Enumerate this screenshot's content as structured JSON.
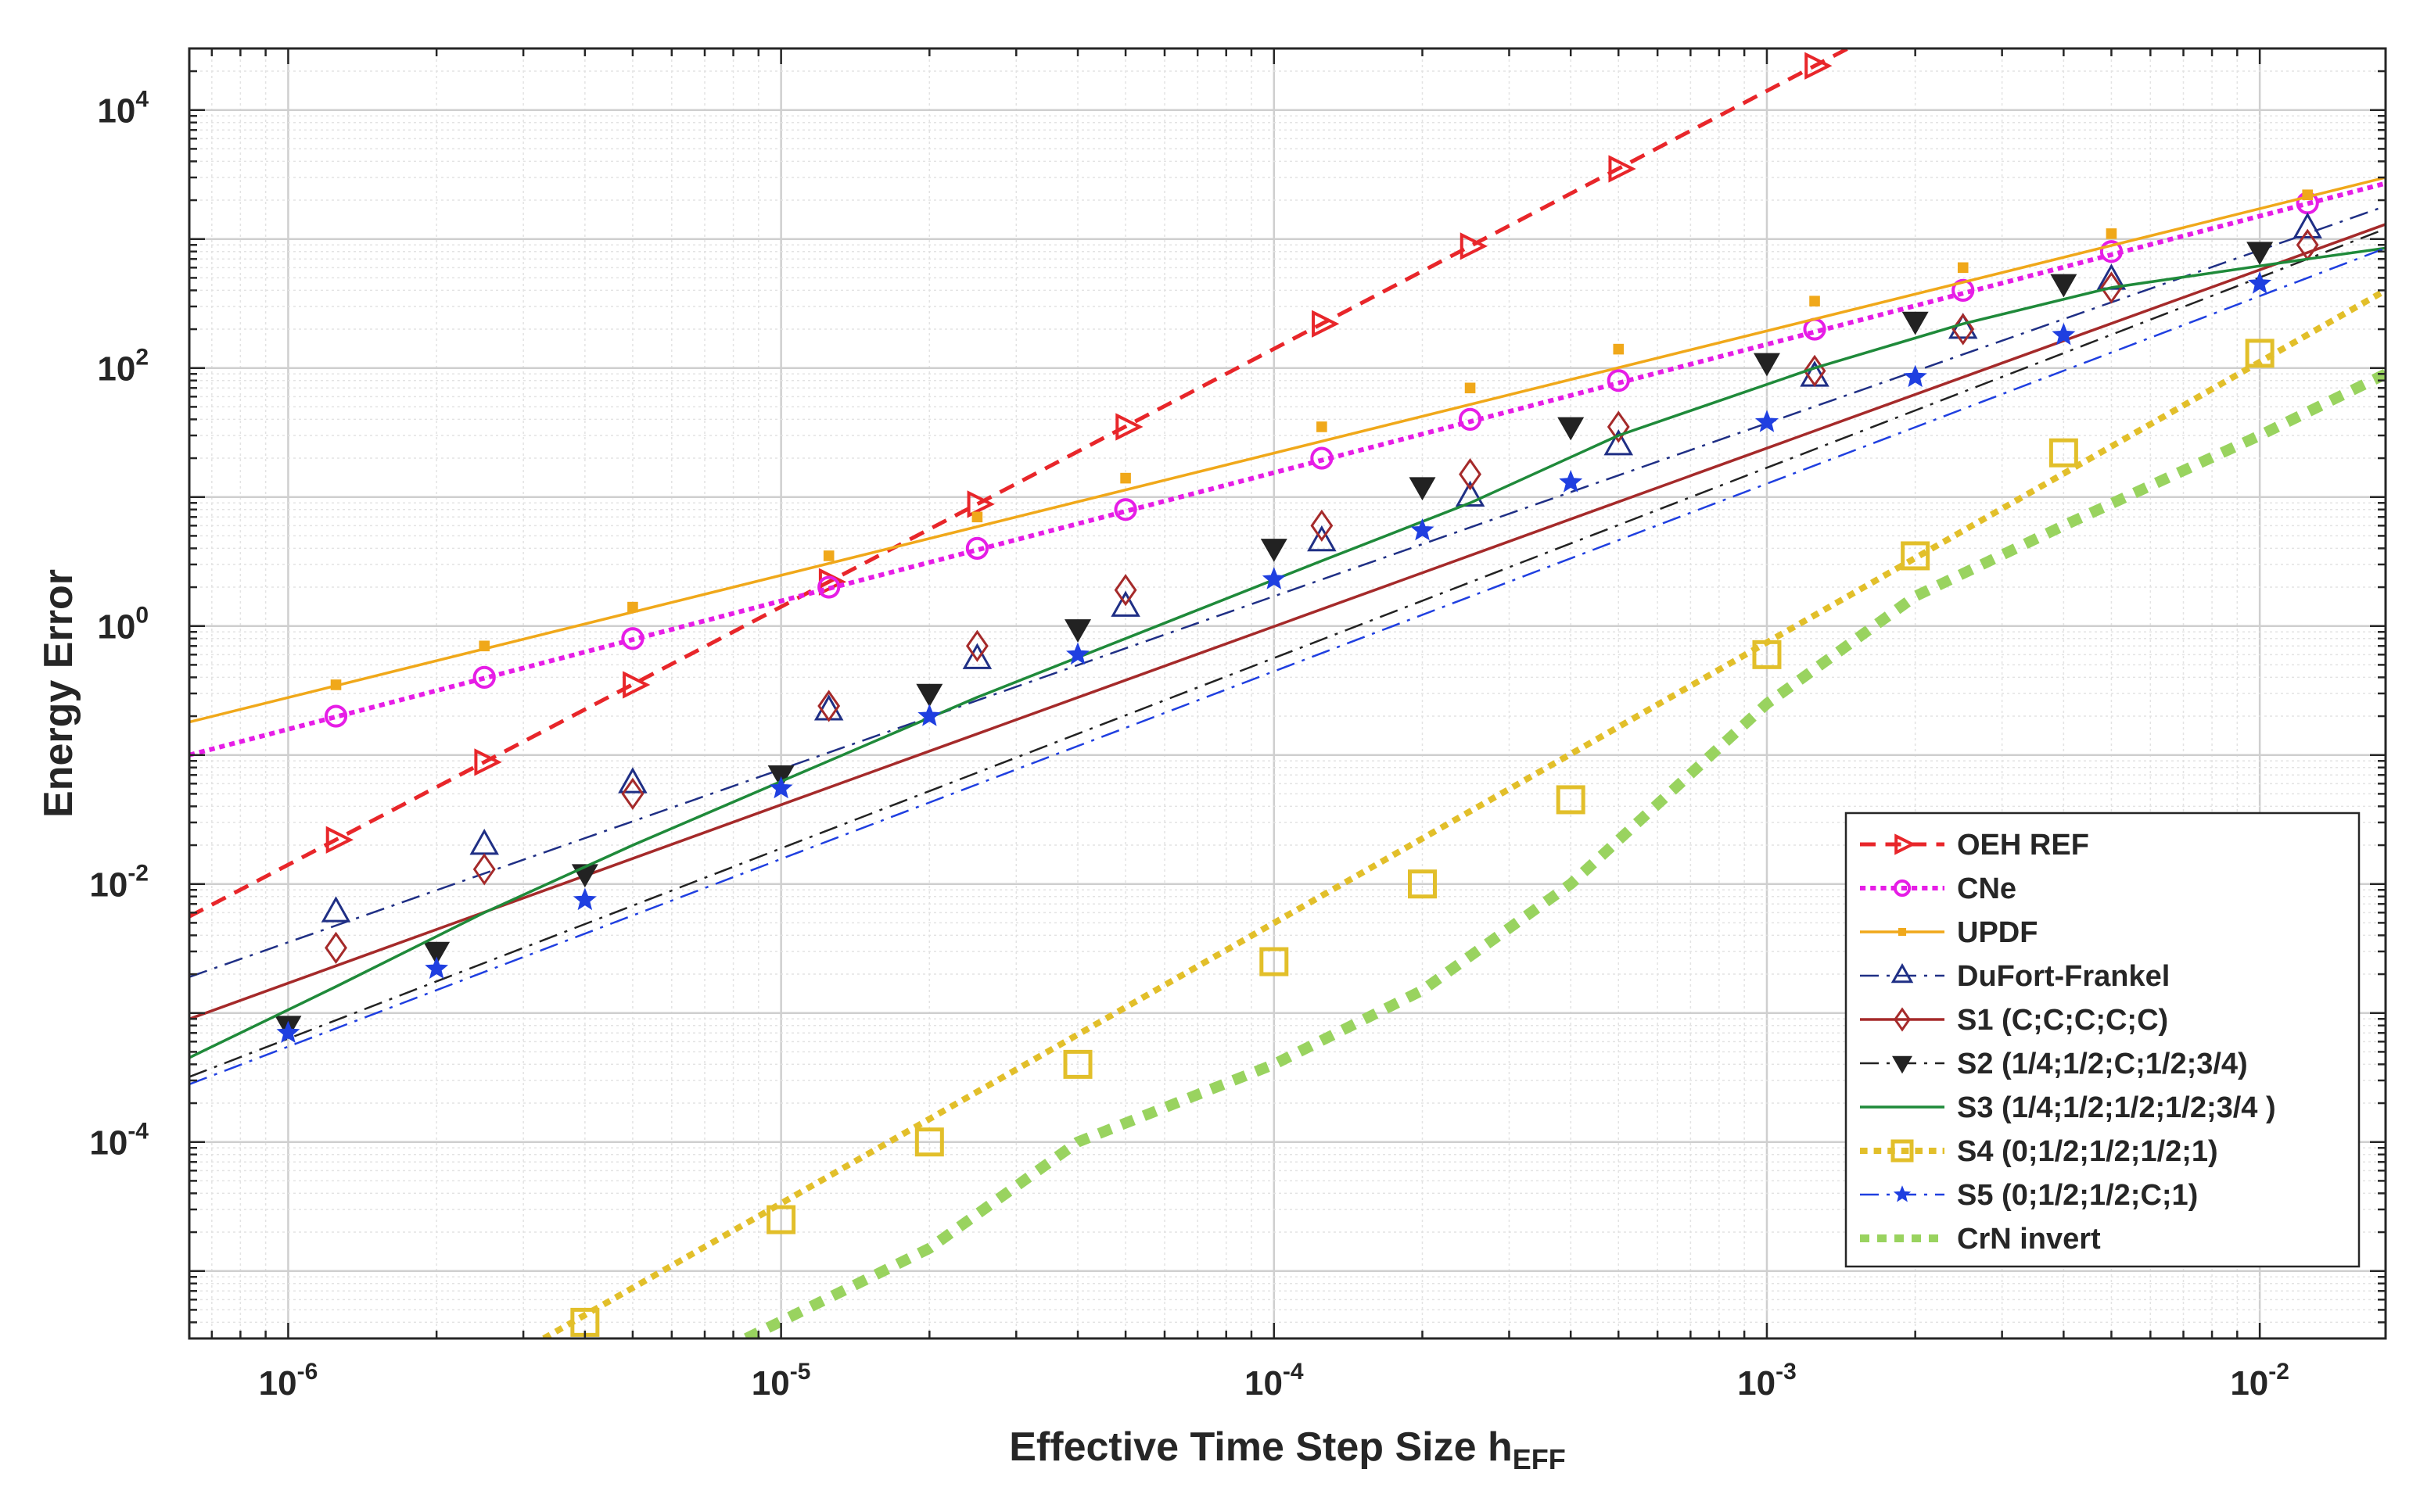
{
  "chart_data": {
    "type": "line",
    "scale": {
      "x": "log",
      "y": "log"
    },
    "xlabel_main": "Effective Time Step Size h",
    "xlabel_sub": "EFF",
    "ylabel": "Energy Error",
    "xlim": [
      6.3e-07,
      0.018
    ],
    "ylim": [
      3e-06,
      30000
    ],
    "x_ticks": [
      {
        "value": 1e-06,
        "base": "10",
        "exp": "-6"
      },
      {
        "value": 1e-05,
        "base": "10",
        "exp": "-5"
      },
      {
        "value": 0.0001,
        "base": "10",
        "exp": "-4"
      },
      {
        "value": 0.001,
        "base": "10",
        "exp": "-3"
      },
      {
        "value": 0.01,
        "base": "10",
        "exp": "-2"
      }
    ],
    "y_ticks": [
      {
        "value": 0.0001,
        "base": "10",
        "exp": "-4"
      },
      {
        "value": 0.01,
        "base": "10",
        "exp": "-2"
      },
      {
        "value": 1,
        "base": "10",
        "exp": "0"
      },
      {
        "value": 100,
        "base": "10",
        "exp": "2"
      },
      {
        "value": 10000,
        "base": "10",
        "exp": "4"
      }
    ],
    "grid": true,
    "legend_position": "bottom-right",
    "series": [
      {
        "name": "OEH REF",
        "color": "#e8262a",
        "dash": "dashed",
        "width": 5,
        "marker": "triangle-right",
        "markers": [
          [
            1.25e-06,
            0.022
          ],
          [
            2.5e-06,
            0.088
          ],
          [
            5e-06,
            0.35
          ],
          [
            1.25e-05,
            2.2
          ],
          [
            2.5e-05,
            8.8
          ],
          [
            5e-05,
            35
          ],
          [
            0.000125,
            220
          ],
          [
            0.00025,
            880
          ],
          [
            0.0005,
            3500
          ],
          [
            0.00125,
            22000
          ]
        ],
        "line": [
          [
            6.3e-07,
            0.0056
          ],
          [
            0.0016,
            36000
          ]
        ]
      },
      {
        "name": "CNe",
        "color": "#e61de6",
        "dash": "dotted",
        "width": 6,
        "marker": "circle",
        "markers": [
          [
            1.25e-06,
            0.2
          ],
          [
            2.5e-06,
            0.4
          ],
          [
            5e-06,
            0.8
          ],
          [
            1.25e-05,
            2
          ],
          [
            2.5e-05,
            4
          ],
          [
            5e-05,
            8
          ],
          [
            0.000125,
            20
          ],
          [
            0.00025,
            40
          ],
          [
            0.0005,
            80
          ],
          [
            0.00125,
            200
          ],
          [
            0.0025,
            400
          ],
          [
            0.005,
            800
          ],
          [
            0.0125,
            1900
          ]
        ],
        "line": [
          [
            6.3e-07,
            0.1
          ],
          [
            0.018,
            2700
          ]
        ]
      },
      {
        "name": "UPDF",
        "color": "#f0a81a",
        "dash": "solid",
        "width": 3.5,
        "marker": "square-small",
        "markers": [
          [
            1.25e-06,
            0.35
          ],
          [
            2.5e-06,
            0.7
          ],
          [
            5e-06,
            1.4
          ],
          [
            1.25e-05,
            3.5
          ],
          [
            2.5e-05,
            7
          ],
          [
            5e-05,
            14
          ],
          [
            0.000125,
            35
          ],
          [
            0.00025,
            70
          ],
          [
            0.0005,
            140
          ],
          [
            0.00125,
            330
          ],
          [
            0.0025,
            600
          ],
          [
            0.005,
            1100
          ],
          [
            0.0125,
            2200
          ]
        ],
        "line": [
          [
            6.3e-07,
            0.18
          ],
          [
            0.018,
            3000
          ]
        ]
      },
      {
        "name": "DuFort-Frankel",
        "color": "#1f2f85",
        "dash": "dashdot",
        "width": 2.5,
        "marker": "triangle-up",
        "markers": [
          [
            1.25e-06,
            0.006
          ],
          [
            2.5e-06,
            0.02
          ],
          [
            5e-06,
            0.06
          ],
          [
            1.25e-05,
            0.22
          ],
          [
            2.5e-05,
            0.55
          ],
          [
            5e-05,
            1.4
          ],
          [
            0.000125,
            4.5
          ],
          [
            0.00025,
            10
          ],
          [
            0.0005,
            25
          ],
          [
            0.00125,
            85
          ],
          [
            0.0025,
            200
          ],
          [
            0.005,
            480
          ],
          [
            0.0125,
            1200
          ]
        ],
        "line": [
          [
            6.3e-07,
            0.0019
          ],
          [
            0.018,
            1800
          ]
        ]
      },
      {
        "name": "S1 (C;C;C;C;C)",
        "color": "#a52a2a",
        "dash": "solid",
        "width": 3.5,
        "marker": "diamond",
        "markers": [
          [
            1.25e-06,
            0.0032
          ],
          [
            2.5e-06,
            0.013
          ],
          [
            5e-06,
            0.05
          ],
          [
            1.25e-05,
            0.24
          ],
          [
            2.5e-05,
            0.7
          ],
          [
            5e-05,
            1.9
          ],
          [
            0.000125,
            6
          ],
          [
            0.00025,
            15
          ],
          [
            0.0005,
            35
          ],
          [
            0.00125,
            95
          ],
          [
            0.0025,
            200
          ],
          [
            0.005,
            420
          ],
          [
            0.0125,
            900
          ]
        ],
        "line": [
          [
            6.3e-07,
            0.0009
          ],
          [
            0.018,
            1300
          ]
        ]
      },
      {
        "name": "S2 (1/4;1/2;C;1/2;3/4)",
        "color": "#222222",
        "dash": "dashdot",
        "width": 2.5,
        "marker": "triangle-down",
        "markers": [
          [
            1e-06,
            0.0008
          ],
          [
            2e-06,
            0.003
          ],
          [
            4e-06,
            0.012
          ],
          [
            1e-05,
            0.07
          ],
          [
            2e-05,
            0.3
          ],
          [
            4e-05,
            0.95
          ],
          [
            0.0001,
            4
          ],
          [
            0.0002,
            12
          ],
          [
            0.0004,
            35
          ],
          [
            0.001,
            110
          ],
          [
            0.002,
            230
          ],
          [
            0.004,
            450
          ],
          [
            0.01,
            800
          ]
        ],
        "line": [
          [
            6.3e-07,
            0.00032
          ],
          [
            0.018,
            1200
          ]
        ]
      },
      {
        "name": "S3 (1/4;1/2;1/2;1/2;3/4 )",
        "color": "#1f8a3a",
        "dash": "solid",
        "width": 3.5,
        "marker": "none",
        "markers": [],
        "line": [
          [
            6.3e-07,
            0.00045
          ],
          [
            1.25e-06,
            0.0016
          ],
          [
            2.5e-06,
            0.006
          ],
          [
            5e-06,
            0.02
          ],
          [
            1.25e-05,
            0.09
          ],
          [
            2.5e-05,
            0.28
          ],
          [
            5e-05,
            0.8
          ],
          [
            0.000125,
            3.2
          ],
          [
            0.00025,
            9
          ],
          [
            0.0005,
            30
          ],
          [
            0.00125,
            100
          ],
          [
            0.0025,
            220
          ],
          [
            0.005,
            420
          ],
          [
            0.0125,
            700
          ],
          [
            0.018,
            850
          ]
        ]
      },
      {
        "name": "S4 (0;1/2;1/2;1/2;1)",
        "color": "#e2bf2a",
        "dash": "dotted",
        "width": 8,
        "marker": "square",
        "markers": [
          [
            4e-06,
            4e-06
          ],
          [
            1e-05,
            2.5e-05
          ],
          [
            2e-05,
            0.0001
          ],
          [
            4e-05,
            0.0004
          ],
          [
            0.0001,
            0.0025
          ],
          [
            0.0002,
            0.01
          ],
          [
            0.0004,
            0.045
          ],
          [
            0.001,
            0.6
          ],
          [
            0.002,
            3.5
          ],
          [
            0.004,
            22
          ],
          [
            0.01,
            130
          ]
        ],
        "line": [
          [
            3.3e-06,
            3e-06
          ],
          [
            0.018,
            400
          ]
        ]
      },
      {
        "name": "S5 (0;1/2;1/2;C;1)",
        "color": "#1f3fe0",
        "dash": "dashdot",
        "width": 2.5,
        "marker": "star",
        "markers": [
          [
            1e-06,
            0.0007
          ],
          [
            2e-06,
            0.0022
          ],
          [
            4e-06,
            0.0075
          ],
          [
            1e-05,
            0.055
          ],
          [
            2e-05,
            0.2
          ],
          [
            4e-05,
            0.6
          ],
          [
            0.0001,
            2.3
          ],
          [
            0.0002,
            5.5
          ],
          [
            0.0004,
            13
          ],
          [
            0.001,
            38
          ],
          [
            0.002,
            85
          ],
          [
            0.004,
            180
          ],
          [
            0.01,
            450
          ]
        ],
        "line": [
          [
            6.3e-07,
            0.00028
          ],
          [
            0.018,
            850
          ]
        ]
      },
      {
        "name": "CrN invert",
        "color": "#99d35f",
        "dash": "dotted",
        "width": 14,
        "marker": "none",
        "markers": [],
        "line": [
          [
            8.5e-06,
            3e-06
          ],
          [
            2e-05,
            1.5e-05
          ],
          [
            4e-05,
            0.0001
          ],
          [
            0.0001,
            0.0004
          ],
          [
            0.0002,
            0.0015
          ],
          [
            0.0004,
            0.01
          ],
          [
            0.001,
            0.25
          ],
          [
            0.002,
            1.7
          ],
          [
            0.004,
            6
          ],
          [
            0.01,
            30
          ],
          [
            0.018,
            90
          ]
        ]
      }
    ]
  }
}
